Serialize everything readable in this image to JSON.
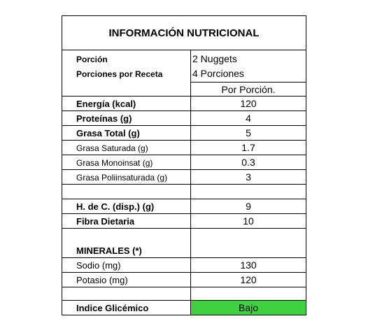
{
  "title": "INFORMACIÓN NUTRICIONAL",
  "serving": {
    "portion_label": "Porción",
    "portion_value": "2 Nuggets",
    "per_recipe_label": "Porciones por Receta",
    "per_recipe_value": "4 Porciones"
  },
  "column_header": "Por Porción.",
  "rows": [
    {
      "label": "Energía (kcal)",
      "value": "120"
    },
    {
      "label": "Proteínas (g)",
      "value": "4"
    },
    {
      "label": "Grasa Total (g)",
      "value": "5"
    },
    {
      "label": "Grasa Saturada (g)",
      "value": "1.7"
    },
    {
      "label": "Grasa Monoinsat (g)",
      "value": "0.3"
    },
    {
      "label": "Grasa Poliinsaturada (g)",
      "value": "3"
    },
    {
      "label": "H. de C. (disp.) (g)",
      "value": "9"
    },
    {
      "label": "Fibra Dietaria",
      "value": "10"
    }
  ],
  "minerals": {
    "heading": "MINERALES (*)",
    "rows": [
      {
        "label": "Sodio (mg)",
        "value": "130"
      },
      {
        "label": "Potasio (mg)",
        "value": "120"
      }
    ]
  },
  "glycemic": {
    "label": "Indice Glicémico",
    "value": "Bajo",
    "color": "#3fd13f"
  }
}
